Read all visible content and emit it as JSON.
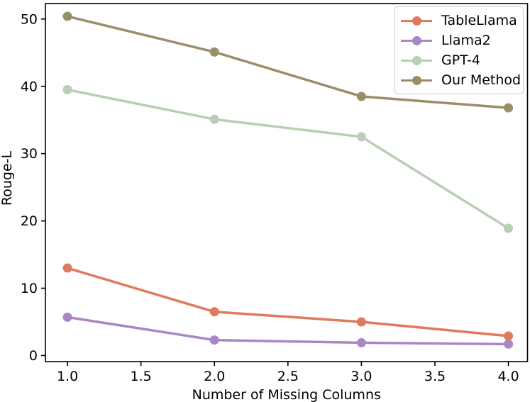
{
  "chart_data": {
    "type": "line",
    "x": [
      1.0,
      2.0,
      3.0,
      4.0
    ],
    "series": [
      {
        "name": "TableLlama",
        "color": "#E07A5C",
        "values": [
          13.0,
          6.5,
          5.0,
          2.9
        ]
      },
      {
        "name": "Llama2",
        "color": "#A987C4",
        "values": [
          5.7,
          2.3,
          1.9,
          1.7
        ]
      },
      {
        "name": "GPT-4",
        "color": "#B8CFB3",
        "values": [
          39.5,
          35.1,
          32.5,
          18.9
        ]
      },
      {
        "name": "Our Method",
        "color": "#9A8E68",
        "values": [
          50.4,
          45.1,
          38.5,
          36.8
        ]
      }
    ],
    "title": "",
    "xlabel": "Number of Missing Columns",
    "ylabel": "Rouge-L",
    "xticks": [
      1.0,
      1.5,
      2.0,
      2.5,
      3.0,
      3.5,
      4.0
    ],
    "xtick_labels": [
      "1.0",
      "1.5",
      "2.0",
      "2.5",
      "3.0",
      "3.5",
      "4.0"
    ],
    "yticks": [
      0,
      10,
      20,
      30,
      40,
      50
    ],
    "ytick_labels": [
      "0",
      "10",
      "20",
      "30",
      "40",
      "50"
    ],
    "xlim": [
      0.85,
      4.13
    ],
    "ylim": [
      -0.9,
      52.3
    ],
    "grid": false,
    "legend_position": "upper right",
    "marker": "circle",
    "line_width": 3.5,
    "marker_radius": 6.5,
    "axis_color": "#000000",
    "background_color": "#ffffff"
  }
}
